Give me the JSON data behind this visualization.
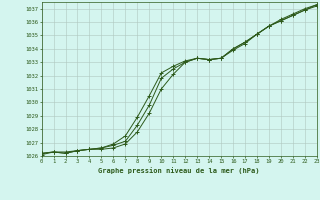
{
  "title": "Graphe pression niveau de la mer (hPa)",
  "bg_color": "#d4f5ef",
  "grid_color": "#b0c8c0",
  "line_color": "#2d5a1b",
  "xlim": [
    0,
    23
  ],
  "ylim": [
    1026,
    1037.5
  ],
  "xticks": [
    0,
    1,
    2,
    3,
    4,
    5,
    6,
    7,
    8,
    9,
    10,
    11,
    12,
    13,
    14,
    15,
    16,
    17,
    18,
    19,
    20,
    21,
    22,
    23
  ],
  "yticks": [
    1026,
    1027,
    1028,
    1029,
    1030,
    1031,
    1032,
    1033,
    1034,
    1035,
    1036,
    1037
  ],
  "line1_x": [
    0,
    1,
    2,
    3,
    4,
    5,
    6,
    7,
    8,
    9,
    10,
    11,
    12,
    13,
    14,
    15,
    16,
    17,
    18,
    19,
    20,
    21,
    22,
    23
  ],
  "line1_y": [
    1026.2,
    1026.3,
    1026.3,
    1026.4,
    1026.5,
    1026.5,
    1026.6,
    1026.9,
    1027.8,
    1029.2,
    1031.0,
    1032.1,
    1033.0,
    1033.3,
    1033.2,
    1033.3,
    1034.0,
    1034.5,
    1035.1,
    1035.7,
    1036.1,
    1036.5,
    1036.9,
    1037.2
  ],
  "line2_x": [
    0,
    1,
    2,
    3,
    4,
    5,
    6,
    7,
    8,
    9,
    10,
    11,
    12,
    13,
    14,
    15,
    16,
    17,
    18,
    19,
    20,
    21,
    22,
    23
  ],
  "line2_y": [
    1026.1,
    1026.3,
    1026.2,
    1026.4,
    1026.5,
    1026.6,
    1026.8,
    1027.1,
    1028.3,
    1029.8,
    1031.8,
    1032.5,
    1033.0,
    1033.3,
    1033.2,
    1033.3,
    1033.9,
    1034.4,
    1035.1,
    1035.7,
    1036.2,
    1036.6,
    1037.0,
    1037.3
  ],
  "line3_x": [
    0,
    1,
    2,
    3,
    4,
    5,
    6,
    7,
    8,
    9,
    10,
    11,
    12,
    13,
    14,
    15,
    16,
    17,
    18,
    19,
    20,
    21,
    22,
    23
  ],
  "line3_y": [
    1026.2,
    1026.3,
    1026.2,
    1026.4,
    1026.5,
    1026.6,
    1026.9,
    1027.5,
    1028.9,
    1030.5,
    1032.2,
    1032.7,
    1033.1,
    1033.3,
    1033.2,
    1033.3,
    1034.0,
    1034.5,
    1035.1,
    1035.7,
    1036.1,
    1036.5,
    1036.9,
    1037.3
  ]
}
